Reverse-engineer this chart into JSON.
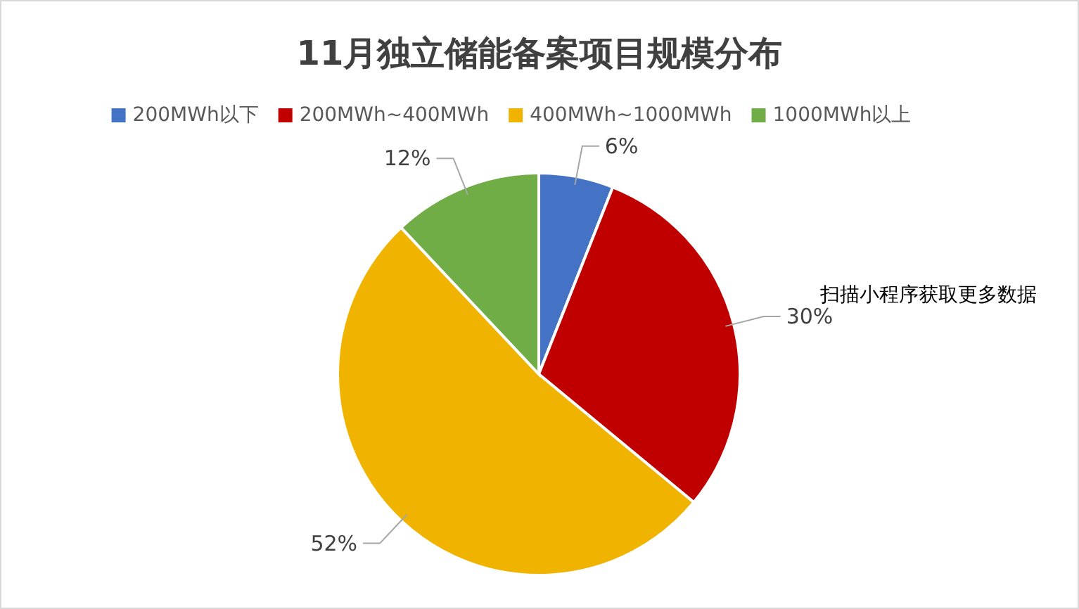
{
  "chart_data": {
    "type": "pie",
    "title": "11月独立储能备案项目规模分布",
    "categories": [
      "200MWh以下",
      "200MWh~400MWh",
      "400MWh~1000MWh",
      "1000MWh以上"
    ],
    "values": [
      6,
      30,
      52,
      12
    ],
    "colors": [
      "#4472c4",
      "#c00000",
      "#f0b400",
      "#70ad47"
    ],
    "value_labels": [
      "6%",
      "30%",
      "52%",
      "12%"
    ],
    "legend": "top",
    "annotations": [
      "扫描小程序获取更多数据"
    ]
  }
}
